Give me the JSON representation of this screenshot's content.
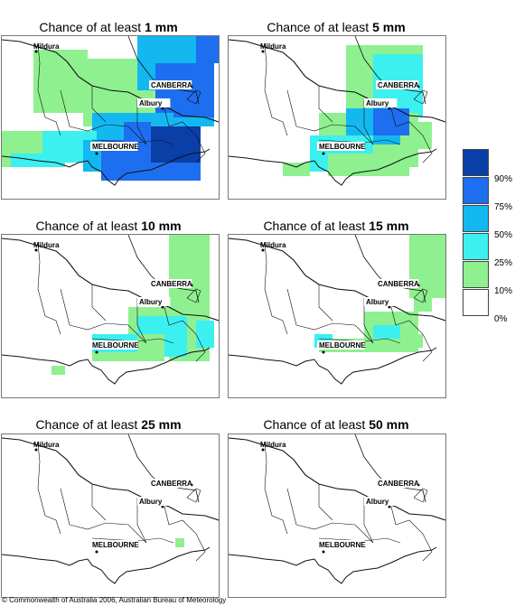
{
  "titles": [
    {
      "prefix": "Chance of at least ",
      "amount": "1 mm"
    },
    {
      "prefix": "Chance of at least ",
      "amount": "5 mm"
    },
    {
      "prefix": "Chance of at least ",
      "amount": "10 mm"
    },
    {
      "prefix": "Chance of at least ",
      "amount": "15 mm"
    },
    {
      "prefix": "Chance of at least ",
      "amount": "25 mm"
    },
    {
      "prefix": "Chance of at least ",
      "amount": "50 mm"
    }
  ],
  "places": {
    "mildura": "Mildura",
    "canberra": "CANBERRA",
    "albury": "Albury",
    "melbourne": "MELBOURNE"
  },
  "legend": {
    "labels": [
      "90%",
      "75%",
      "50%",
      "25%",
      "10%",
      "0%"
    ],
    "colors": [
      "#0a3fa8",
      "#1e6ef0",
      "#14b8f0",
      "#3cf0f0",
      "#8ff08f",
      "#ffffff"
    ]
  },
  "footer": "© Commonwealth of Australia 2006, Australian Bureau of Meteorology"
}
